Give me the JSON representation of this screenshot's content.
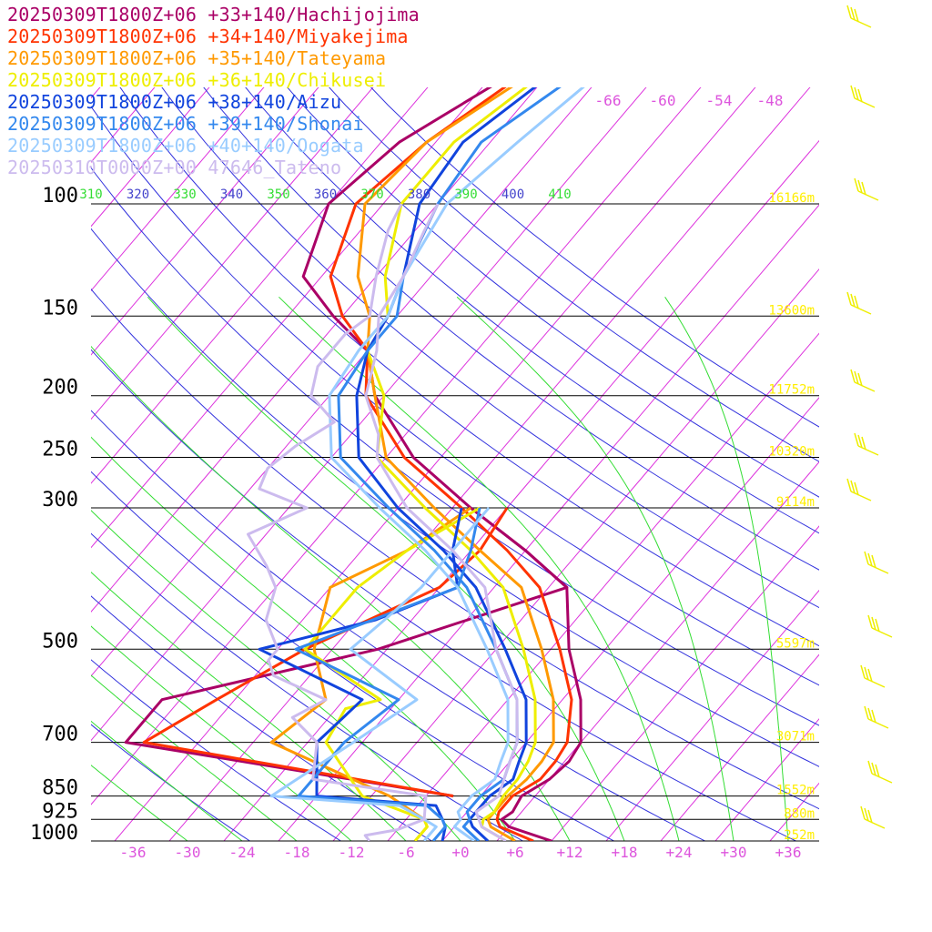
{
  "chart_data": {
    "type": "line",
    "title": "",
    "xlabel": "",
    "ylabel": "",
    "xlim": [
      -40,
      40
    ],
    "ylim": [
      1000,
      100
    ],
    "y_scale": "log",
    "pressure_levels": [
      {
        "p": 100,
        "label": "100",
        "height": "16166m"
      },
      {
        "p": 150,
        "label": "150",
        "height": "13600m"
      },
      {
        "p": 200,
        "label": "200",
        "height": "11752m"
      },
      {
        "p": 250,
        "label": "250",
        "height": "10320m"
      },
      {
        "p": 300,
        "label": "300",
        "height": "9114m"
      },
      {
        "p": 500,
        "label": "500",
        "height": "5597m"
      },
      {
        "p": 700,
        "label": "700",
        "height": "3071m"
      },
      {
        "p": 850,
        "label": "850",
        "height": "1552m"
      },
      {
        "p": 925,
        "label": "925",
        "height": "880m"
      },
      {
        "p": 1000,
        "label": "1000",
        "height": "252m"
      }
    ],
    "x_ticks": [
      {
        "v": -36,
        "label": "-36"
      },
      {
        "v": -30,
        "label": "-30"
      },
      {
        "v": -24,
        "label": "-24"
      },
      {
        "v": -18,
        "label": "-18"
      },
      {
        "v": -12,
        "label": "-12"
      },
      {
        "v": -6,
        "label": "-6"
      },
      {
        "v": 0,
        "label": "+0"
      },
      {
        "v": 6,
        "label": "+6"
      },
      {
        "v": 12,
        "label": "+12"
      },
      {
        "v": 18,
        "label": "+18"
      },
      {
        "v": 24,
        "label": "+24"
      },
      {
        "v": 30,
        "label": "+30"
      },
      {
        "v": 36,
        "label": "+36"
      }
    ],
    "top_temp_labels": [
      "-66",
      "-60",
      "-54",
      "-48"
    ],
    "theta_labels": [
      "310",
      "320",
      "330",
      "340",
      "350",
      "360",
      "370",
      "380",
      "390",
      "400",
      "410"
    ],
    "grid": true,
    "legend_position": "top-left",
    "colors": {
      "isotherm": "#dd33dd",
      "dry_adiabat": "#3333dd",
      "moist_adiabat": "#33dd33",
      "isobar": "#000000",
      "height_label": "#ffee00",
      "axis_label": "#dd55dd",
      "wind_barb": "#eeee00"
    },
    "series": [
      {
        "name": "20250309T1800Z+06 +33+140/Hachijojima",
        "color": "#aa0066",
        "temp": [
          [
            1000,
            10
          ],
          [
            950,
            4
          ],
          [
            925,
            2.5
          ],
          [
            900,
            3
          ],
          [
            850,
            2.5
          ],
          [
            800,
            4
          ],
          [
            750,
            4.5
          ],
          [
            700,
            4
          ],
          [
            600,
            0
          ],
          [
            500,
            -6
          ],
          [
            400,
            -12
          ],
          [
            350,
            -20
          ],
          [
            300,
            -30
          ],
          [
            250,
            -41
          ],
          [
            200,
            -51
          ],
          [
            170,
            -56
          ],
          [
            150,
            -63
          ],
          [
            130,
            -70
          ],
          [
            100,
            -74
          ],
          [
            80,
            -72
          ],
          [
            60,
            -65
          ]
        ],
        "dew": [
          [
            850,
            -5
          ],
          [
            700,
            -46
          ],
          [
            600,
            -46
          ],
          [
            500,
            -27
          ],
          [
            400,
            -12
          ],
          [
            350,
            -20
          ],
          [
            300,
            -30
          ]
        ]
      },
      {
        "name": "20250309T1800Z+06 +34+140/Miyakejima",
        "color": "#ff3300",
        "temp": [
          [
            1000,
            8
          ],
          [
            950,
            3
          ],
          [
            925,
            2
          ],
          [
            900,
            1.5
          ],
          [
            850,
            1.5
          ],
          [
            800,
            3
          ],
          [
            750,
            3
          ],
          [
            700,
            2.5
          ],
          [
            600,
            -1
          ],
          [
            500,
            -7
          ],
          [
            400,
            -15
          ],
          [
            350,
            -22
          ],
          [
            300,
            -31
          ],
          [
            250,
            -42
          ],
          [
            200,
            -52
          ],
          [
            170,
            -56
          ],
          [
            150,
            -62
          ],
          [
            130,
            -67
          ],
          [
            100,
            -71
          ],
          [
            80,
            -69
          ],
          [
            60,
            -64
          ]
        ],
        "dew": [
          [
            850,
            -5
          ],
          [
            700,
            -44
          ],
          [
            600,
            -40
          ],
          [
            500,
            -35
          ],
          [
            400,
            -26
          ],
          [
            350,
            -25
          ],
          [
            300,
            -26
          ]
        ]
      },
      {
        "name": "20250309T1800Z+06 +35+140/Tateyama",
        "color": "#ff9900",
        "temp": [
          [
            1000,
            6
          ],
          [
            950,
            2
          ],
          [
            925,
            1
          ],
          [
            900,
            1
          ],
          [
            850,
            1
          ],
          [
            800,
            1.5
          ],
          [
            750,
            1.5
          ],
          [
            700,
            1
          ],
          [
            600,
            -3
          ],
          [
            500,
            -9
          ],
          [
            400,
            -17
          ],
          [
            350,
            -25
          ],
          [
            300,
            -34
          ],
          [
            250,
            -44
          ],
          [
            200,
            -51
          ],
          [
            170,
            -56
          ],
          [
            150,
            -59
          ],
          [
            130,
            -64
          ],
          [
            100,
            -70
          ],
          [
            80,
            -69
          ],
          [
            60,
            -63
          ]
        ],
        "dew": [
          [
            1000,
            -5
          ],
          [
            950,
            -5
          ],
          [
            925,
            -6
          ],
          [
            850,
            -12
          ],
          [
            700,
            -30
          ],
          [
            600,
            -28
          ],
          [
            500,
            -34
          ],
          [
            400,
            -38
          ],
          [
            350,
            -33
          ],
          [
            300,
            -30
          ]
        ]
      },
      {
        "name": "20250309T1800Z+06 +36+140/Chikusei",
        "color": "#eeee00",
        "temp": [
          [
            1000,
            5
          ],
          [
            950,
            1
          ],
          [
            925,
            0.5
          ],
          [
            900,
            1
          ],
          [
            850,
            0.5
          ],
          [
            800,
            0.5
          ],
          [
            750,
            0
          ],
          [
            700,
            -1
          ],
          [
            600,
            -5
          ],
          [
            500,
            -11
          ],
          [
            400,
            -19
          ],
          [
            350,
            -26
          ],
          [
            300,
            -35
          ],
          [
            250,
            -45
          ],
          [
            200,
            -50
          ],
          [
            170,
            -56
          ],
          [
            150,
            -57
          ],
          [
            130,
            -61
          ],
          [
            100,
            -66
          ],
          [
            80,
            -66
          ],
          [
            60,
            -62
          ]
        ],
        "dew": [
          [
            1000,
            -5
          ],
          [
            950,
            -5
          ],
          [
            925,
            -6
          ],
          [
            850,
            -15
          ],
          [
            700,
            -24
          ],
          [
            620,
            -25
          ],
          [
            600,
            -22
          ],
          [
            500,
            -35
          ],
          [
            400,
            -35
          ],
          [
            350,
            -33
          ],
          [
            300,
            -29
          ]
        ]
      },
      {
        "name": "20250309T1800Z+06 +38+140/Aizu",
        "color": "#1144dd",
        "temp": [
          [
            1000,
            3
          ],
          [
            950,
            0
          ],
          [
            925,
            -1
          ],
          [
            900,
            -1
          ],
          [
            850,
            -1
          ],
          [
            800,
            0
          ],
          [
            750,
            -1
          ],
          [
            700,
            -2
          ],
          [
            600,
            -6
          ],
          [
            500,
            -13
          ],
          [
            400,
            -22
          ],
          [
            350,
            -29
          ],
          [
            300,
            -38
          ],
          [
            250,
            -47
          ],
          [
            200,
            -53
          ],
          [
            170,
            -56
          ],
          [
            150,
            -57
          ],
          [
            130,
            -59
          ],
          [
            100,
            -64
          ],
          [
            80,
            -65
          ],
          [
            60,
            -61
          ]
        ],
        "dew": [
          [
            1000,
            -2
          ],
          [
            950,
            -3
          ],
          [
            925,
            -4
          ],
          [
            880,
            -6
          ],
          [
            850,
            -20
          ],
          [
            700,
            -25
          ],
          [
            600,
            -24
          ],
          [
            500,
            -40
          ],
          [
            450,
            -30
          ],
          [
            400,
            -24
          ],
          [
            350,
            -28
          ],
          [
            300,
            -31
          ]
        ]
      },
      {
        "name": "20250309T1800Z+06 +39+140/Shonai",
        "color": "#3388ee",
        "temp": [
          [
            1000,
            2
          ],
          [
            950,
            -1
          ],
          [
            925,
            -1
          ],
          [
            900,
            -2
          ],
          [
            850,
            -2
          ],
          [
            800,
            -1
          ],
          [
            750,
            -2
          ],
          [
            700,
            -3
          ],
          [
            600,
            -7
          ],
          [
            500,
            -14
          ],
          [
            400,
            -23
          ],
          [
            350,
            -30
          ],
          [
            300,
            -39
          ],
          [
            250,
            -49
          ],
          [
            200,
            -55
          ],
          [
            170,
            -56
          ],
          [
            150,
            -56
          ],
          [
            130,
            -59
          ],
          [
            100,
            -62
          ],
          [
            80,
            -63
          ],
          [
            60,
            -58
          ]
        ],
        "dew": [
          [
            1000,
            -3
          ],
          [
            950,
            -3
          ],
          [
            925,
            -4
          ],
          [
            880,
            -7
          ],
          [
            850,
            -22
          ],
          [
            700,
            -22
          ],
          [
            600,
            -20
          ],
          [
            500,
            -36
          ],
          [
            400,
            -24
          ],
          [
            350,
            -26
          ],
          [
            300,
            -29
          ]
        ]
      },
      {
        "name": "20250309T1800Z+06 +40+140/Oogata",
        "color": "#99ccff",
        "temp": [
          [
            1000,
            1.5
          ],
          [
            950,
            -2
          ],
          [
            925,
            -2
          ],
          [
            900,
            -3
          ],
          [
            850,
            -3
          ],
          [
            800,
            -2
          ],
          [
            750,
            -3
          ],
          [
            700,
            -4
          ],
          [
            600,
            -8
          ],
          [
            500,
            -15
          ],
          [
            400,
            -24
          ],
          [
            350,
            -31
          ],
          [
            300,
            -40
          ],
          [
            250,
            -50
          ],
          [
            200,
            -56
          ],
          [
            170,
            -57
          ],
          [
            150,
            -57
          ],
          [
            130,
            -59
          ],
          [
            100,
            -61
          ],
          [
            80,
            -59
          ],
          [
            60,
            -56
          ]
        ],
        "dew": [
          [
            1000,
            -4
          ],
          [
            950,
            -4
          ],
          [
            925,
            -6
          ],
          [
            880,
            -10
          ],
          [
            850,
            -25
          ],
          [
            700,
            -21
          ],
          [
            600,
            -18
          ],
          [
            500,
            -30
          ],
          [
            450,
            -29
          ],
          [
            400,
            -28
          ],
          [
            350,
            -28
          ],
          [
            300,
            -28
          ]
        ]
      },
      {
        "name": "20250310T0000Z+00 47646_Tateno",
        "color": "#ccbbee",
        "temp": [
          [
            1000,
            5
          ],
          [
            950,
            1
          ],
          [
            925,
            0
          ],
          [
            900,
            -1
          ],
          [
            850,
            0
          ],
          [
            800,
            -1
          ],
          [
            750,
            -2
          ],
          [
            700,
            -3
          ],
          [
            600,
            -7
          ],
          [
            500,
            -14
          ],
          [
            400,
            -21
          ],
          [
            350,
            -28
          ],
          [
            300,
            -37
          ],
          [
            250,
            -45
          ],
          [
            230,
            -47
          ],
          [
            200,
            -52
          ],
          [
            170,
            -55
          ],
          [
            150,
            -58
          ],
          [
            130,
            -59
          ],
          [
            110,
            -61
          ],
          [
            100,
            -62
          ]
        ],
        "dew": [
          [
            1000,
            -10
          ],
          [
            980,
            -11
          ],
          [
            960,
            -8
          ],
          [
            925,
            -6
          ],
          [
            850,
            -8
          ],
          [
            800,
            -22
          ],
          [
            700,
            -25
          ],
          [
            640,
            -30
          ],
          [
            600,
            -28
          ],
          [
            550,
            -36
          ],
          [
            520,
            -38
          ],
          [
            500,
            -38
          ],
          [
            450,
            -42
          ],
          [
            400,
            -44
          ],
          [
            370,
            -47
          ],
          [
            330,
            -52
          ],
          [
            300,
            -48
          ],
          [
            280,
            -55
          ],
          [
            260,
            -56
          ],
          [
            240,
            -55
          ],
          [
            220,
            -53
          ],
          [
            200,
            -58
          ],
          [
            180,
            -60
          ],
          [
            160,
            -60
          ],
          [
            150,
            -59
          ],
          [
            130,
            -62
          ],
          [
            110,
            -65
          ],
          [
            100,
            -66
          ]
        ]
      }
    ]
  }
}
